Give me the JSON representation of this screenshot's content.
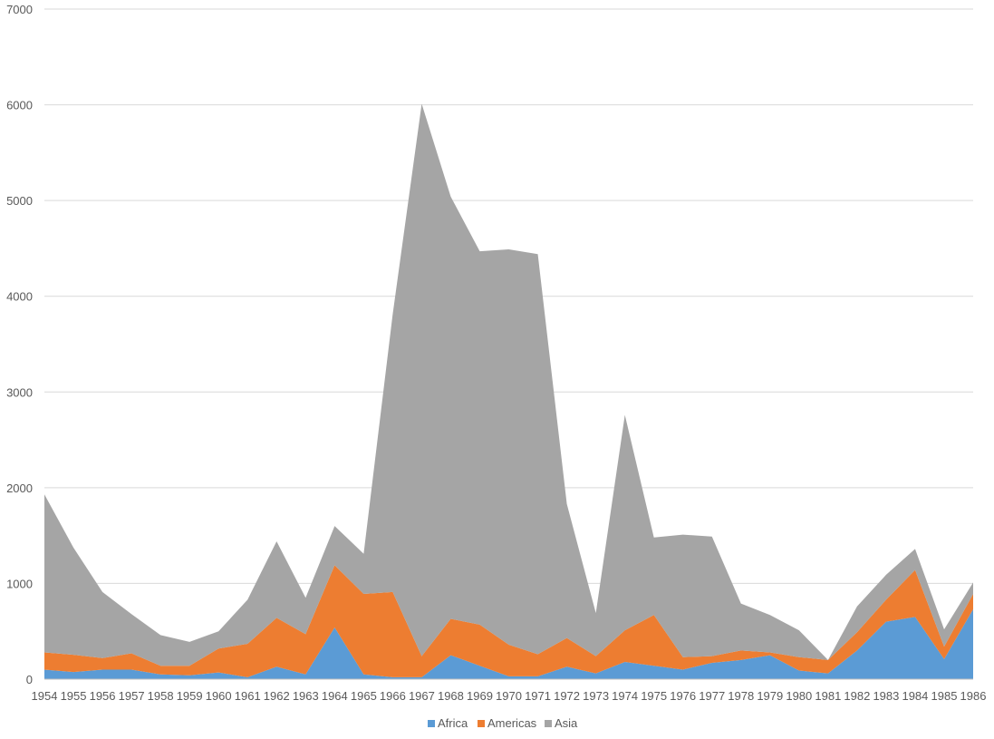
{
  "chart_data": {
    "type": "area",
    "stacked": true,
    "categories": [
      "1954",
      "1955",
      "1956",
      "1957",
      "1958",
      "1959",
      "1960",
      "1961",
      "1962",
      "1963",
      "1964",
      "1965",
      "1966",
      "1967",
      "1968",
      "1969",
      "1970",
      "1971",
      "1972",
      "1973",
      "1974",
      "1975",
      "1976",
      "1977",
      "1978",
      "1979",
      "1980",
      "1981",
      "1982",
      "1983",
      "1984",
      "1985",
      "1986"
    ],
    "series": [
      {
        "name": "Africa",
        "color": "#5b9bd5",
        "values": [
          100,
          75,
          100,
          100,
          50,
          40,
          70,
          20,
          130,
          50,
          540,
          50,
          20,
          20,
          250,
          140,
          30,
          30,
          130,
          60,
          180,
          140,
          100,
          170,
          200,
          250,
          90,
          60,
          300,
          600,
          650,
          210,
          730
        ]
      },
      {
        "name": "Americas",
        "color": "#ed7d31",
        "values": [
          180,
          180,
          120,
          170,
          90,
          100,
          250,
          350,
          510,
          420,
          650,
          840,
          890,
          220,
          380,
          430,
          330,
          230,
          300,
          180,
          330,
          530,
          130,
          70,
          100,
          30,
          140,
          140,
          190,
          230,
          490,
          130,
          160
        ]
      },
      {
        "name": "Asia",
        "color": "#a5a5a5",
        "values": [
          1650,
          1120,
          690,
          410,
          320,
          250,
          180,
          460,
          800,
          380,
          410,
          420,
          2900,
          5770,
          4410,
          3900,
          4130,
          4180,
          1400,
          450,
          2250,
          810,
          1280,
          1250,
          490,
          390,
          280,
          0,
          270,
          260,
          220,
          180,
          120
        ]
      }
    ],
    "ylim": [
      0,
      7000
    ],
    "yticks": [
      "0",
      "1000",
      "2000",
      "3000",
      "4000",
      "5000",
      "6000",
      "7000"
    ],
    "grid": true,
    "legend_position": "bottom"
  }
}
